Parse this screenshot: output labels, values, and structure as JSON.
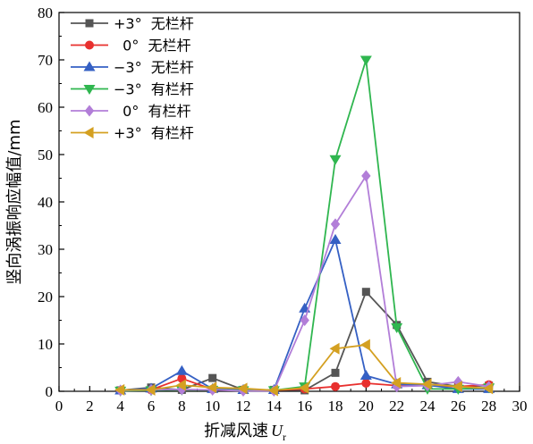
{
  "chart_data": {
    "type": "line",
    "xlabel": "折减风速",
    "xlabel_var": "U",
    "xlabel_sub": "r",
    "ylabel": "竖向涡振响应幅值/mm",
    "xlim": [
      0,
      30
    ],
    "ylim": [
      0,
      80
    ],
    "xticks": [
      "0",
      "2",
      "4",
      "6",
      "8",
      "10",
      "12",
      "14",
      "16",
      "18",
      "20",
      "22",
      "24",
      "26",
      "28",
      "30"
    ],
    "yticks": [
      "0",
      "10",
      "20",
      "30",
      "40",
      "50",
      "60",
      "70",
      "80"
    ],
    "grid": false,
    "legend_position": "top-left",
    "x": [
      4,
      6,
      8,
      10,
      12,
      14,
      16,
      18,
      20,
      22,
      24,
      26,
      28
    ],
    "series": [
      {
        "name": "+3°  无栏杆",
        "marker": "square",
        "color": "#555555",
        "values": [
          0.2,
          0.8,
          0.3,
          2.8,
          0.3,
          0.3,
          0.2,
          3.9,
          21.0,
          14.0,
          2.0,
          1.0,
          1.2
        ]
      },
      {
        "name": "  0°  无栏杆",
        "marker": "circle",
        "color": "#e8302e",
        "values": [
          0.2,
          0.3,
          2.7,
          0.4,
          0.3,
          0.2,
          0.5,
          1.0,
          1.7,
          1.2,
          1.2,
          1.0,
          1.4
        ]
      },
      {
        "name": "−3°  无栏杆",
        "marker": "triangle-up",
        "color": "#3560c4",
        "values": [
          0.2,
          0.6,
          4.3,
          0.5,
          0.3,
          0.3,
          17.5,
          32.0,
          3.3,
          1.5,
          1.3,
          0.5,
          0.5
        ]
      },
      {
        "name": "−3°  有栏杆",
        "marker": "triangle-down",
        "color": "#2fb64f",
        "values": [
          0.1,
          0.2,
          0.3,
          0.3,
          0.2,
          0.2,
          1.0,
          49.0,
          70.0,
          13.5,
          0.5,
          0.5,
          0.8
        ]
      },
      {
        "name": "  0°  有栏杆",
        "marker": "diamond",
        "color": "#b27ed8",
        "values": [
          0.2,
          0.3,
          0.4,
          0.3,
          0.1,
          0.1,
          15.0,
          35.3,
          45.5,
          1.0,
          1.2,
          2.0,
          1.0
        ]
      },
      {
        "name": "+3°  有栏杆",
        "marker": "triangle-left",
        "color": "#d4a021",
        "values": [
          0.3,
          0.3,
          1.3,
          0.8,
          0.6,
          0.2,
          0.7,
          9.0,
          9.8,
          1.8,
          1.5,
          1.0,
          0.6
        ]
      }
    ]
  }
}
